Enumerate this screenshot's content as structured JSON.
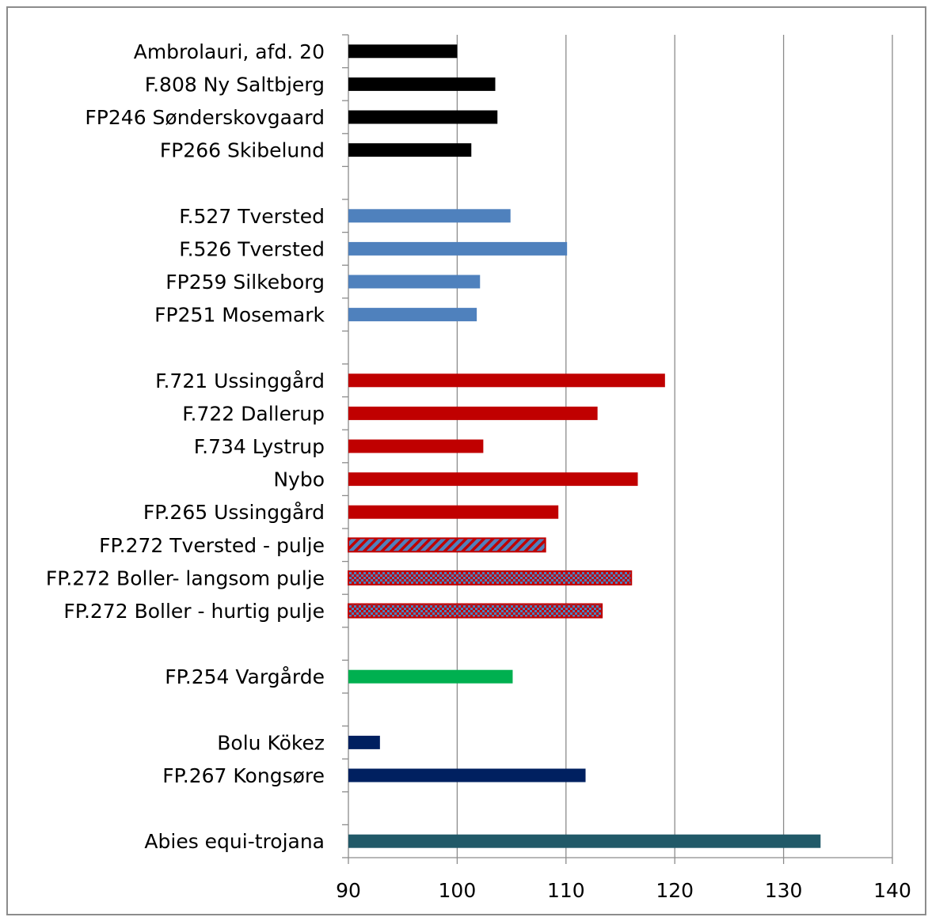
{
  "chart_data": {
    "type": "bar",
    "orientation": "horizontal",
    "title": "",
    "xlabel": "",
    "ylabel": "",
    "xlim": [
      90,
      140
    ],
    "xticks": [
      90,
      100,
      110,
      120,
      130,
      140
    ],
    "grid": "vertical",
    "legend": "none",
    "categories": [
      {
        "label": "Ambrolauri, afd. 20",
        "value": 100.0,
        "color": "#000000",
        "fill": "solid"
      },
      {
        "label": "F.808 Ny Saltbjerg",
        "value": 103.5,
        "color": "#000000",
        "fill": "solid"
      },
      {
        "label": "FP246 Sønderskovgaard",
        "value": 103.7,
        "color": "#000000",
        "fill": "solid"
      },
      {
        "label": "FP266 Skibelund",
        "value": 101.3,
        "color": "#000000",
        "fill": "solid"
      },
      {
        "label": "",
        "value": null
      },
      {
        "label": "F.527 Tversted",
        "value": 104.9,
        "color": "#4f81bd",
        "fill": "solid"
      },
      {
        "label": "F.526 Tversted",
        "value": 110.1,
        "color": "#4f81bd",
        "fill": "solid"
      },
      {
        "label": "FP259 Silkeborg",
        "value": 102.1,
        "color": "#4f81bd",
        "fill": "solid"
      },
      {
        "label": "FP251 Mosemark",
        "value": 101.8,
        "color": "#4f81bd",
        "fill": "solid"
      },
      {
        "label": "",
        "value": null
      },
      {
        "label": "F.721 Ussinggård",
        "value": 119.1,
        "color": "#c00000",
        "fill": "solid"
      },
      {
        "label": "F.722 Dallerup",
        "value": 112.9,
        "color": "#c00000",
        "fill": "solid"
      },
      {
        "label": "F.734 Lystrup",
        "value": 102.4,
        "color": "#c00000",
        "fill": "solid"
      },
      {
        "label": "Nybo",
        "value": 116.6,
        "color": "#c00000",
        "fill": "solid"
      },
      {
        "label": "FP.265 Ussinggård",
        "value": 109.3,
        "color": "#c00000",
        "fill": "solid"
      },
      {
        "label": "FP.272 Tversted - pulje",
        "value": 108.1,
        "color": "#c00000",
        "fill": "diagonal-stripes",
        "color2": "#4f81bd"
      },
      {
        "label": "FP.272 Boller- langsom pulje",
        "value": 116.0,
        "color": "#c00000",
        "fill": "checker",
        "color2": "#4f81bd"
      },
      {
        "label": "FP.272 Boller - hurtig pulje",
        "value": 113.3,
        "color": "#c00000",
        "fill": "checker",
        "color2": "#4f81bd"
      },
      {
        "label": "",
        "value": null
      },
      {
        "label": "FP.254 Vargårde",
        "value": 105.1,
        "color": "#00b050",
        "fill": "solid"
      },
      {
        "label": "",
        "value": null
      },
      {
        "label": "Bolu Kökez",
        "value": 92.9,
        "color": "#002060",
        "fill": "solid"
      },
      {
        "label": "FP.267 Kongsøre",
        "value": 111.8,
        "color": "#002060",
        "fill": "solid"
      },
      {
        "label": "",
        "value": null
      },
      {
        "label": "Abies equi-trojana",
        "value": 133.4,
        "color": "#215968",
        "fill": "solid"
      }
    ]
  }
}
